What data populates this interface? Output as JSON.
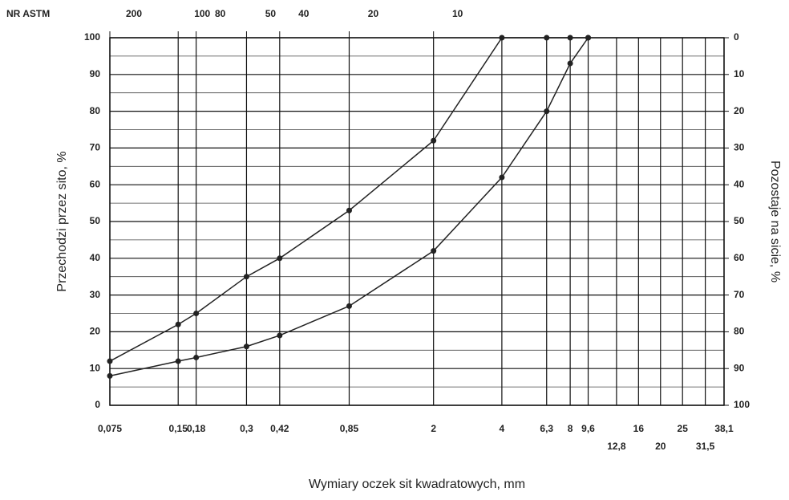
{
  "chart_data": {
    "type": "line",
    "x_label": "Wymiary oczek sit kwadratowych, mm",
    "y_label": "Przechodzi przez sito, %",
    "y2_label": "Pozostaje na sicie, %",
    "x2_title": "NR ASTM",
    "xscale": "log",
    "xlim": [
      0.075,
      38.1
    ],
    "xticks": [
      {
        "value": 0.075,
        "label": "0,075"
      },
      {
        "value": 0.15,
        "label": "0,15"
      },
      {
        "value": 0.18,
        "label": "0,18"
      },
      {
        "value": 0.3,
        "label": "0,3"
      },
      {
        "value": 0.42,
        "label": "0,42"
      },
      {
        "value": 0.85,
        "label": "0,85"
      },
      2,
      4,
      {
        "value": 6.3,
        "label": "6,3"
      },
      8,
      {
        "value": 9.6,
        "label": "9,6"
      },
      {
        "value": 12.8,
        "label": "12,8"
      },
      16,
      20,
      25,
      {
        "value": 31.5,
        "label": "31,5"
      },
      {
        "value": 38.1,
        "label": "38,1"
      }
    ],
    "x2ticks": [
      {
        "value": 0.075,
        "label": "200"
      },
      {
        "value": 0.15,
        "label": "100"
      },
      {
        "value": 0.18,
        "label": "80"
      },
      {
        "value": 0.3,
        "label": "50"
      },
      {
        "value": 0.42,
        "label": "40"
      },
      {
        "value": 0.85,
        "label": "20"
      },
      {
        "value": 2,
        "label": "10"
      }
    ],
    "ylim": [
      0,
      100
    ],
    "yticks": [
      0,
      10,
      20,
      30,
      40,
      50,
      60,
      70,
      80,
      90,
      100
    ],
    "yminorticks": [
      5,
      15,
      25,
      35,
      45,
      55,
      65,
      75,
      85,
      95
    ],
    "y2lim": [
      100,
      0
    ],
    "y2ticks": [
      0,
      10,
      20,
      30,
      40,
      50,
      60,
      70,
      80,
      90,
      100
    ],
    "grid": true,
    "x": [
      0.075,
      0.15,
      0.18,
      0.3,
      0.42,
      0.85,
      2,
      4,
      6.3,
      8,
      9.6
    ],
    "series": [
      {
        "color": "#222222",
        "values": [
          12,
          22,
          25,
          35,
          40,
          53,
          72,
          100,
          100,
          100,
          100
        ]
      },
      {
        "color": "#222222",
        "values": [
          8,
          12,
          13,
          16,
          19,
          27,
          42,
          62,
          80,
          93,
          100
        ]
      }
    ]
  }
}
